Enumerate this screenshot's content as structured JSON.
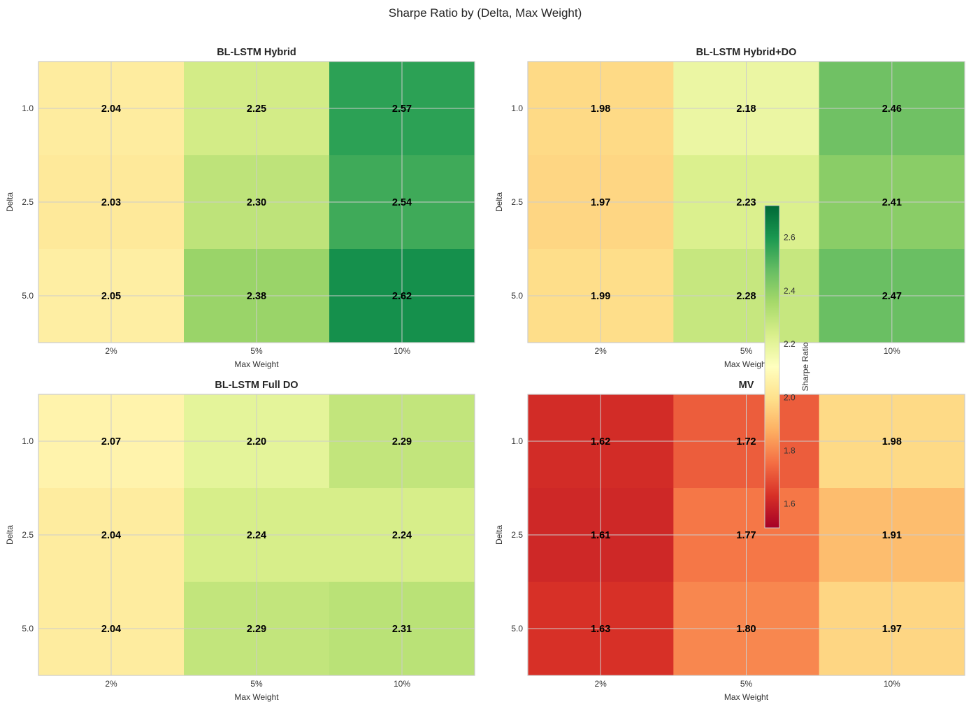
{
  "chart_data": {
    "type": "heatmap",
    "title": "Sharpe Ratio by (Delta, Max Weight)",
    "colormap": "RdYlGn",
    "color_range": [
      1.51,
      2.72
    ],
    "colorbar": {
      "label": "Sharpe Ratio",
      "ticks": [
        1.6,
        1.8,
        2.0,
        2.2,
        2.4,
        2.6
      ],
      "tick_labels": [
        "1.6",
        "1.8",
        "2.0",
        "2.2",
        "2.4",
        "2.6"
      ]
    },
    "xlabel": "Max Weight",
    "ylabel": "Delta",
    "x_categories": [
      "2%",
      "5%",
      "10%"
    ],
    "y_categories": [
      "1.0",
      "2.5",
      "5.0"
    ],
    "grid": true,
    "panels": [
      {
        "title": "BL-LSTM Hybrid",
        "values": [
          [
            2.04,
            2.25,
            2.57
          ],
          [
            2.03,
            2.3,
            2.54
          ],
          [
            2.05,
            2.38,
            2.62
          ]
        ],
        "labels": [
          [
            "2.04",
            "2.25",
            "2.57"
          ],
          [
            "2.03",
            "2.30",
            "2.54"
          ],
          [
            "2.05",
            "2.38",
            "2.62"
          ]
        ]
      },
      {
        "title": "BL-LSTM Hybrid+DO",
        "values": [
          [
            1.98,
            2.18,
            2.46
          ],
          [
            1.97,
            2.23,
            2.41
          ],
          [
            1.99,
            2.28,
            2.47
          ]
        ],
        "labels": [
          [
            "1.98",
            "2.18",
            "2.46"
          ],
          [
            "1.97",
            "2.23",
            "2.41"
          ],
          [
            "1.99",
            "2.28",
            "2.47"
          ]
        ]
      },
      {
        "title": "BL-LSTM Full DO",
        "values": [
          [
            2.07,
            2.2,
            2.29
          ],
          [
            2.04,
            2.24,
            2.24
          ],
          [
            2.04,
            2.29,
            2.31
          ]
        ],
        "labels": [
          [
            "2.07",
            "2.20",
            "2.29"
          ],
          [
            "2.04",
            "2.24",
            "2.24"
          ],
          [
            "2.04",
            "2.29",
            "2.31"
          ]
        ]
      },
      {
        "title": "MV",
        "values": [
          [
            1.62,
            1.72,
            1.98
          ],
          [
            1.61,
            1.77,
            1.91
          ],
          [
            1.63,
            1.8,
            1.97
          ]
        ],
        "labels": [
          [
            "1.62",
            "1.72",
            "1.98"
          ],
          [
            "1.61",
            "1.77",
            "1.91"
          ],
          [
            "1.63",
            "1.80",
            "1.97"
          ]
        ]
      }
    ]
  }
}
